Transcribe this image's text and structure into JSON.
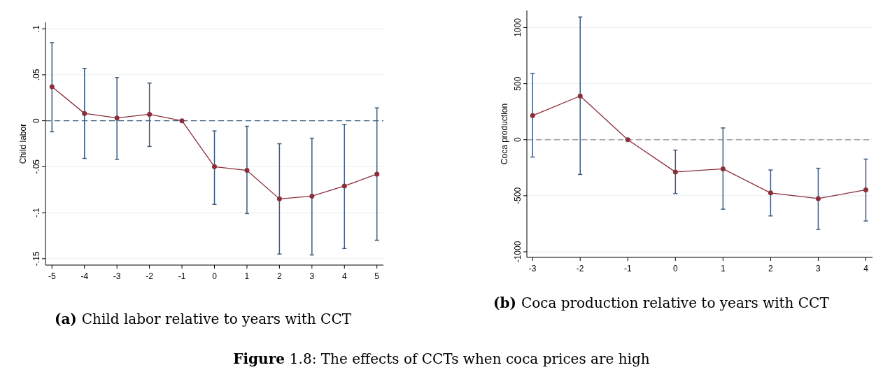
{
  "chart_data": [
    {
      "type": "line",
      "title": "(a) Child labor relative to years with CCT",
      "ylabel": "Child labor",
      "x": [
        -5,
        -4,
        -3,
        -2,
        -1,
        0,
        1,
        2,
        3,
        4,
        5
      ],
      "xlim": [
        -5.2,
        5.2
      ],
      "xticks": [
        -5,
        -4,
        -3,
        -2,
        -1,
        0,
        1,
        2,
        3,
        4,
        5
      ],
      "ylim": [
        -0.157,
        0.107
      ],
      "yticks": [
        {
          "value": 0.1,
          "label": ".1"
        },
        {
          "value": 0.05,
          "label": ".05"
        },
        {
          "value": 0,
          "label": "0"
        },
        {
          "value": -0.05,
          "label": "-.05"
        },
        {
          "value": -0.1,
          "label": "-.1"
        },
        {
          "value": -0.15,
          "label": "-.15"
        }
      ],
      "grid": "y",
      "marker": "circle",
      "line_style": "solid",
      "ref_lines": [
        {
          "axis": "y",
          "value": 0,
          "color": "#3b5b7e",
          "line_style": "dashed"
        }
      ],
      "series": [
        {
          "color": "#8b2e3a",
          "values": [
            0.037,
            0.008,
            0.003,
            0.007,
            0,
            -0.05,
            -0.054,
            -0.085,
            -0.082,
            -0.071,
            -0.058
          ],
          "errors": [
            [
              -0.012,
              0.085
            ],
            [
              -0.041,
              0.057
            ],
            [
              -0.042,
              0.047
            ],
            [
              -0.028,
              0.041
            ],
            null,
            [
              -0.091,
              -0.011
            ],
            [
              -0.101,
              -0.006
            ],
            [
              -0.145,
              -0.025
            ],
            [
              -0.146,
              -0.019
            ],
            [
              -0.139,
              -0.004
            ],
            [
              -0.13,
              0.014
            ]
          ]
        }
      ],
      "annotations": [
        "Figure 1.8: The effects of CCTs when coca prices are high"
      ]
    },
    {
      "type": "line",
      "title": "(b) Coca production relative to years with CCT",
      "ylabel": "Coca production",
      "x": [
        -3,
        -2,
        -1,
        0,
        1,
        2,
        3,
        4
      ],
      "xlim": [
        -3.12,
        4.14
      ],
      "xticks": [
        -3,
        -2,
        -1,
        0,
        1,
        2,
        3,
        4
      ],
      "ylim": [
        -1050,
        1153
      ],
      "yticks": [
        1000,
        500,
        0,
        -500,
        -1000
      ],
      "grid": "y",
      "marker": "circle",
      "line_style": "solid",
      "ref_lines": [
        {
          "axis": "y",
          "value": 0,
          "color": "#a0a0a0",
          "line_style": "dashed"
        }
      ],
      "series": [
        {
          "color": "#8b2e3a",
          "values": [
            215,
            390,
            0,
            -288,
            -260,
            -475,
            -525,
            -447
          ],
          "errors": [
            [
              -155,
              590
            ],
            [
              -310,
              1095
            ],
            null,
            [
              -480,
              -93
            ],
            [
              -620,
              105
            ],
            [
              -680,
              -270
            ],
            [
              -800,
              -255
            ],
            [
              -725,
              -173
            ]
          ]
        }
      ]
    }
  ]
}
